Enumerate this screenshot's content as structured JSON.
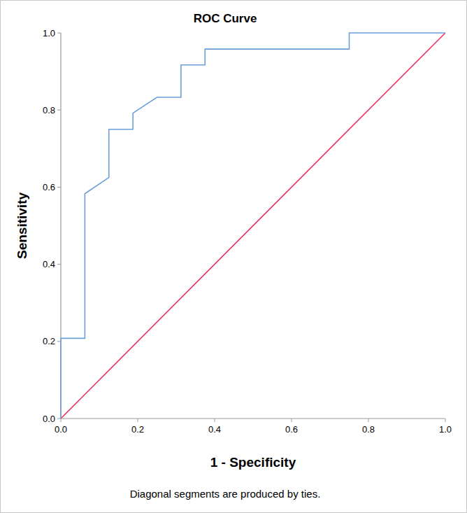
{
  "chart_data": {
    "type": "line",
    "title": "ROC Curve",
    "x_label": "1 - Specificity",
    "y_label": "Sensitivity",
    "footnote": "Diagonal segments are produced by ties.",
    "xlim": [
      0,
      1
    ],
    "ylim": [
      0,
      1
    ],
    "xticks": [
      {
        "value": 0,
        "label": "0.0"
      },
      {
        "value": 0.2,
        "label": "0.2"
      },
      {
        "value": 0.4,
        "label": "0.4"
      },
      {
        "value": 0.6,
        "label": "0.6"
      },
      {
        "value": 0.8,
        "label": "0.8"
      },
      {
        "value": 1,
        "label": "1.0"
      }
    ],
    "yticks": [
      {
        "value": 0,
        "label": "0.0"
      },
      {
        "value": 0.2,
        "label": "0.2"
      },
      {
        "value": 0.4,
        "label": "0.4"
      },
      {
        "value": 0.6,
        "label": "0.6"
      },
      {
        "value": 0.8,
        "label": "0.8"
      },
      {
        "value": 1,
        "label": "1.0"
      }
    ],
    "grid": false,
    "series": [
      {
        "color": "#6b9fd9",
        "x": [
          0,
          0,
          0.0625,
          0.0625,
          0.125,
          0.125,
          0.1875,
          0.1875,
          0.25,
          0.3125,
          0.3125,
          0.375,
          0.375,
          0.75,
          0.75,
          1
        ],
        "values": [
          0,
          0.208,
          0.208,
          0.583,
          0.625,
          0.75,
          0.75,
          0.792,
          0.833,
          0.833,
          0.917,
          0.917,
          0.958,
          0.958,
          1,
          1
        ]
      },
      {
        "color": "#e8305c",
        "x": [
          0,
          1
        ],
        "values": [
          0,
          1
        ]
      }
    ]
  }
}
